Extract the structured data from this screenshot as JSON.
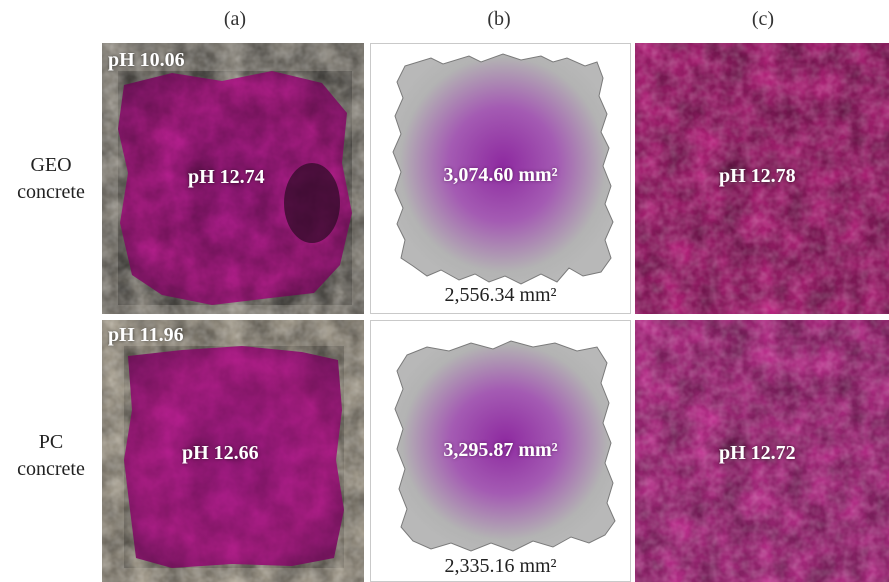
{
  "columns": [
    "(a)",
    "(b)",
    "(c)"
  ],
  "rows": [
    {
      "label_line1": "GEO",
      "label_line2": "concrete",
      "a_outer_ph": "pH 10.06",
      "a_inner_ph": "pH 12.74",
      "b_inner_area": "3,074.60 mm²",
      "b_outer_area": "2,556.34 mm²",
      "c_ph": "pH 12.78"
    },
    {
      "label_line1": "PC",
      "label_line2": "concrete",
      "a_outer_ph": "pH 11.96",
      "a_inner_ph": "pH 12.66",
      "b_inner_area": "3,295.87 mm²",
      "b_outer_area": "2,335.16 mm²",
      "c_ph": "pH 12.72"
    }
  ],
  "colors": {
    "magenta": "#b01a8a",
    "concrete_gray": "#a8a49c",
    "shape_gray": "#b3b3b3",
    "purple_center": "#8a2a9a"
  }
}
